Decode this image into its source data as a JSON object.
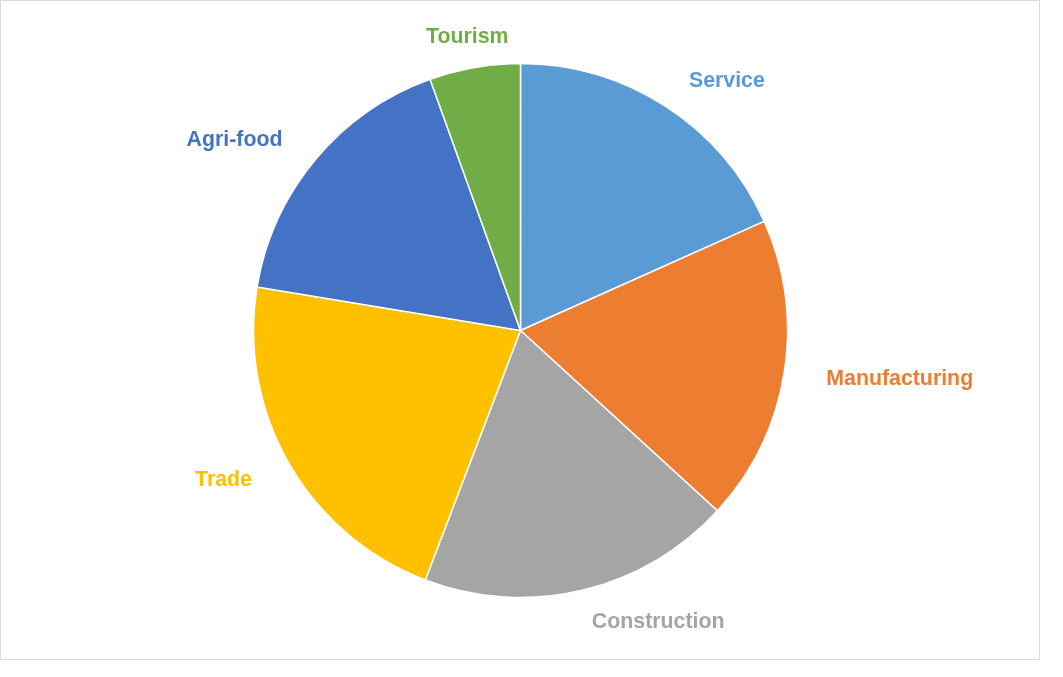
{
  "chart_data": {
    "type": "pie",
    "categories": [
      "Service",
      "Manufacturing",
      "Construction",
      "Trade",
      "Agri-food",
      "Tourism"
    ],
    "values": [
      18.3,
      18.5,
      19.0,
      21.8,
      16.9,
      5.5
    ],
    "colors": [
      "#5b9bd5",
      "#ed7d31",
      "#a5a5a5",
      "#ffc000",
      "#4472c4",
      "#70ad47"
    ],
    "legend": false
  }
}
